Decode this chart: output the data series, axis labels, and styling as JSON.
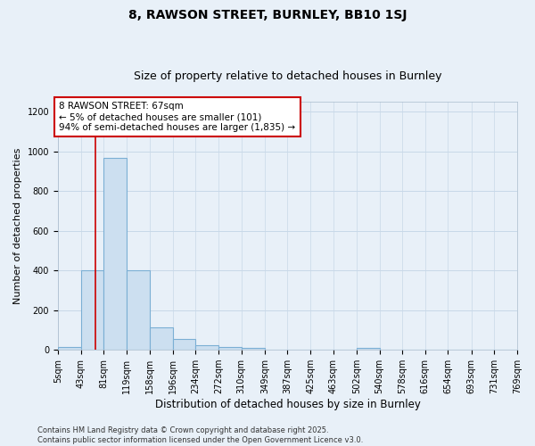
{
  "title1": "8, RAWSON STREET, BURNLEY, BB10 1SJ",
  "title2": "Size of property relative to detached houses in Burnley",
  "xlabel": "Distribution of detached houses by size in Burnley",
  "ylabel": "Number of detached properties",
  "bin_edges": [
    5,
    43,
    81,
    119,
    158,
    196,
    234,
    272,
    310,
    349,
    387,
    425,
    463,
    502,
    540,
    578,
    616,
    654,
    693,
    731,
    769
  ],
  "bar_heights": [
    15,
    400,
    965,
    400,
    115,
    55,
    22,
    15,
    10,
    0,
    0,
    0,
    0,
    10,
    0,
    0,
    0,
    0,
    0,
    0
  ],
  "bar_color": "#ccdff0",
  "bar_edge_color": "#7bafd4",
  "bar_linewidth": 0.8,
  "property_size": 67,
  "vline_color": "#cc0000",
  "vline_linewidth": 1.2,
  "annotation_text": "8 RAWSON STREET: 67sqm\n← 5% of detached houses are smaller (101)\n94% of semi-detached houses are larger (1,835) →",
  "annotation_box_color": "#cc0000",
  "annotation_bg": "white",
  "ylim": [
    0,
    1250
  ],
  "yticks": [
    0,
    200,
    400,
    600,
    800,
    1000,
    1200
  ],
  "grid_color": "#c8d8e8",
  "bg_color": "#e8f0f8",
  "plot_bg_color": "#e8f0f8",
  "footnote": "Contains HM Land Registry data © Crown copyright and database right 2025.\nContains public sector information licensed under the Open Government Licence v3.0.",
  "title_fontsize": 10,
  "subtitle_fontsize": 9,
  "tick_fontsize": 7,
  "ylabel_fontsize": 8,
  "xlabel_fontsize": 8.5,
  "annotation_fontsize": 7.5,
  "footnote_fontsize": 6
}
